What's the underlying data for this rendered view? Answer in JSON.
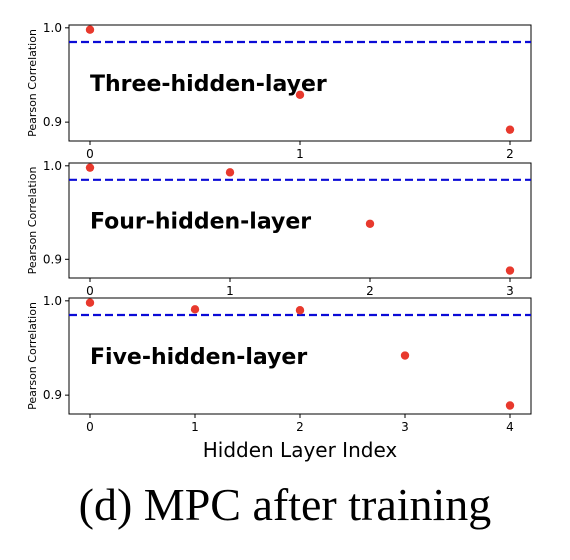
{
  "caption": "(d) MPC after training",
  "colors": {
    "point": "#e8392d",
    "reference_line": "#0b0bd6",
    "axis": "#000000"
  },
  "chart_data": [
    {
      "type": "scatter",
      "annotation": "Three-hidden-layer",
      "ylabel": "Pearson Correlation",
      "xlabel": "",
      "x": [
        0,
        1,
        2
      ],
      "y": [
        0.998,
        0.929,
        0.892
      ],
      "xticks": [
        "0",
        "1",
        "2"
      ],
      "yticks": [
        "0.9",
        "1.0"
      ],
      "ylim": [
        0.88,
        1.003
      ],
      "reference_line": {
        "y": 0.985,
        "style": "dashed"
      },
      "grid": false
    },
    {
      "type": "scatter",
      "annotation": "Four-hidden-layer",
      "ylabel": "Pearson Correlation",
      "xlabel": "",
      "x": [
        0,
        1,
        2,
        3
      ],
      "y": [
        0.998,
        0.993,
        0.938,
        0.888
      ],
      "xticks": [
        "0",
        "1",
        "2",
        "3"
      ],
      "yticks": [
        "0.9",
        "1.0"
      ],
      "ylim": [
        0.88,
        1.003
      ],
      "reference_line": {
        "y": 0.985,
        "style": "dashed"
      },
      "grid": false
    },
    {
      "type": "scatter",
      "annotation": "Five-hidden-layer",
      "ylabel": "Pearson Correlation",
      "xlabel": "Hidden Layer Index",
      "x": [
        0,
        1,
        2,
        3,
        4
      ],
      "y": [
        0.998,
        0.991,
        0.99,
        0.942,
        0.889
      ],
      "xticks": [
        "0",
        "1",
        "2",
        "3",
        "4"
      ],
      "yticks": [
        "0.9",
        "1.0"
      ],
      "ylim": [
        0.88,
        1.003
      ],
      "reference_line": {
        "y": 0.985,
        "style": "dashed"
      },
      "grid": false
    }
  ]
}
